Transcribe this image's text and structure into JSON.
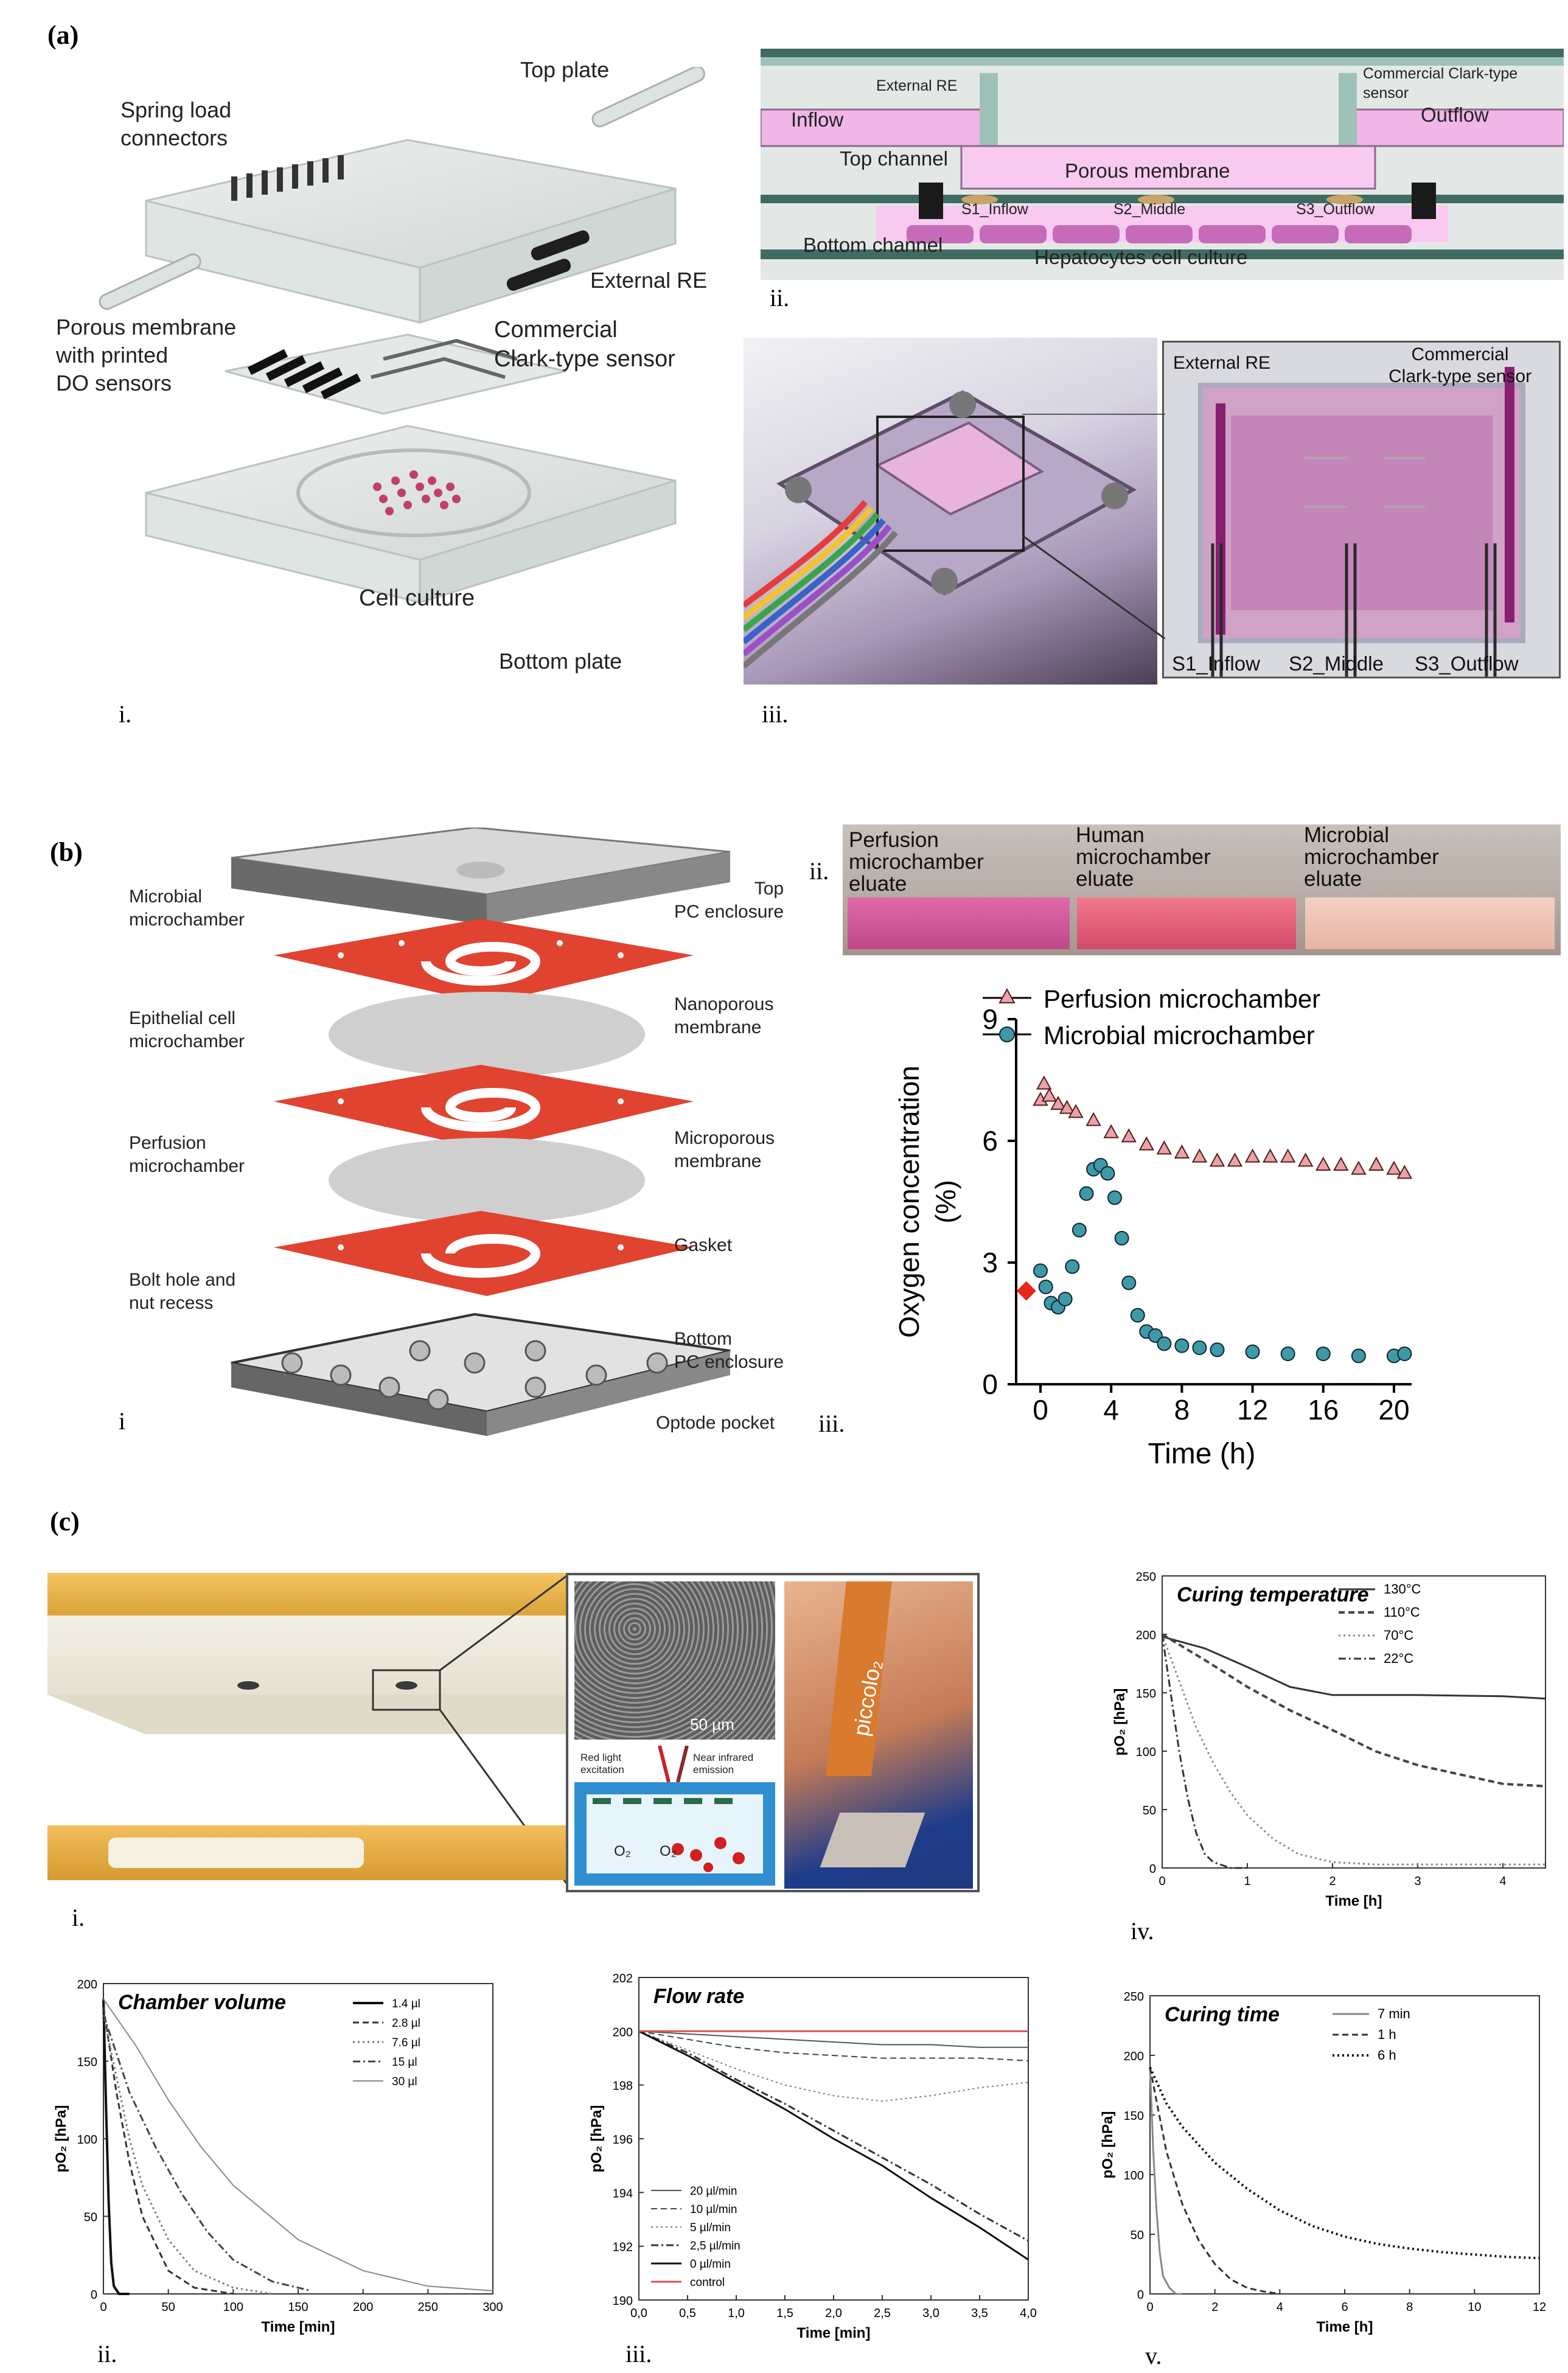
{
  "panel_a": {
    "label": "(a)",
    "sub_i": "i.",
    "sub_ii": "ii.",
    "sub_iii": "iii.",
    "exploded": {
      "spring_load_connectors": "Spring load\nconnectors",
      "top_plate": "Top plate",
      "porous_membrane": "Porous membrane\nwith printed\nDO sensors",
      "external_re": "External RE",
      "clark_sensor": "Commercial\nClark-type sensor",
      "cell_culture": "Cell culture",
      "bottom_plate": "Bottom plate"
    },
    "cross_section": {
      "external_re": "External RE",
      "clark_sensor": "Commercial Clark-type\nsensor",
      "inflow": "Inflow",
      "outflow": "Outflow",
      "top_channel": "Top channel",
      "porous_membrane": "Porous membrane",
      "s1": "S1_Inflow",
      "s2": "S2_Middle",
      "s3": "S3_Outflow",
      "bottom_channel": "Bottom channel",
      "hepatocytes": "Hepatocytes cell culture"
    },
    "photo": {
      "external_re": "External RE",
      "clark_sensor": "Commercial\nClark-type sensor",
      "s1": "S1_Inflow",
      "s2": "S2_Middle",
      "s3": "S3_Outflow"
    }
  },
  "panel_b": {
    "label": "(b)",
    "sub_i": "i",
    "sub_ii": "ii.",
    "sub_iii": "iii.",
    "exploded": {
      "top_pc": "Top\nPC enclosure",
      "microbial": "Microbial\nmicrochamber",
      "nanoporous": "Nanoporous\nmembrane",
      "epithelial": "Epithelial cell\nmicrochamber",
      "perfusion": "Perfusion\nmicrochamber",
      "microporous": "Microporous\nmembrane",
      "gasket": "Gasket",
      "bolt_hole": "Bolt hole and\nnut recess",
      "bottom_pc": "Bottom\nPC enclosure",
      "optode": "Optode pocket"
    },
    "eluates": [
      "Perfusion\nmicrochamber\neluate",
      "Human\nmicrochamber\neluate",
      "Microbial\nmicrochamber\neluate"
    ]
  },
  "panel_c": {
    "label": "(c)",
    "sub_i": "i.",
    "sub_ii": "ii.",
    "sub_iii": "iii.",
    "sub_iv": "iv.",
    "sub_v": "v.",
    "sem_scale": "50 µm",
    "red_light": "Red light\nexcitation",
    "nir": "Near infrared\nemission",
    "o2a": "O₂",
    "o2b": "O₂",
    "probe_brand": "piccolo₂"
  },
  "colors": {
    "perfusion": "#e8a4a8",
    "microbial": "#3e9aa6",
    "red_marker": "#e8271c",
    "red_layer": "#e0432f",
    "pink": "#f0b6e8",
    "gold": "#e2a23a"
  },
  "chart_data": [
    {
      "id": "b-iii",
      "type": "scatter",
      "xlabel": "Time (h)",
      "ylabel": "Oxygen concentration\n(%)",
      "xlim": [
        0,
        21
      ],
      "ylim": [
        0,
        9
      ],
      "xticks": [
        0,
        4,
        8,
        12,
        16,
        20
      ],
      "yticks": [
        0,
        3,
        6,
        9
      ],
      "grid": false,
      "legend_position": "top",
      "series": [
        {
          "name": "Perfusion microchamber",
          "x": [
            0,
            0.2,
            0.5,
            1,
            1.5,
            2,
            3,
            4,
            5,
            6,
            7,
            8,
            9,
            10,
            11,
            12,
            13,
            14,
            15,
            16,
            17,
            18,
            19,
            20,
            20.6
          ],
          "y": [
            7.0,
            7.4,
            7.1,
            6.9,
            6.8,
            6.7,
            6.5,
            6.2,
            6.1,
            5.9,
            5.8,
            5.7,
            5.6,
            5.5,
            5.5,
            5.6,
            5.6,
            5.6,
            5.5,
            5.4,
            5.4,
            5.3,
            5.4,
            5.3,
            5.2
          ]
        },
        {
          "name": "Microbial microchamber",
          "x": [
            0,
            0.3,
            0.6,
            1,
            1.4,
            1.8,
            2.2,
            2.6,
            3,
            3.4,
            3.8,
            4.2,
            4.6,
            5,
            5.5,
            6,
            6.5,
            7,
            8,
            9,
            10,
            12,
            14,
            16,
            18,
            20,
            20.6
          ],
          "y": [
            2.8,
            2.4,
            2.0,
            1.9,
            2.1,
            2.9,
            3.8,
            4.7,
            5.3,
            5.4,
            5.2,
            4.6,
            3.6,
            2.5,
            1.7,
            1.3,
            1.2,
            1.0,
            0.95,
            0.9,
            0.85,
            0.8,
            0.75,
            0.75,
            0.7,
            0.7,
            0.75
          ]
        },
        {
          "name": "",
          "x": [
            -0.8
          ],
          "y": [
            2.3
          ]
        }
      ]
    },
    {
      "id": "c-iv",
      "type": "line",
      "title": "Curing temperature",
      "xlabel": "Time [h]",
      "ylabel": "pO₂ [hPa]",
      "xlim": [
        0,
        4.5
      ],
      "ylim": [
        0,
        250
      ],
      "xticks": [
        0,
        1,
        2,
        3,
        4
      ],
      "yticks": [
        0,
        50,
        100,
        150,
        200,
        250
      ],
      "series": [
        {
          "name": "130°C",
          "x": [
            0,
            0.5,
            1,
            1.5,
            2,
            3,
            4,
            4.5
          ],
          "y": [
            198,
            188,
            172,
            155,
            148,
            148,
            147,
            145
          ]
        },
        {
          "name": "110°C",
          "x": [
            0,
            0.5,
            1,
            1.5,
            2,
            2.5,
            3,
            3.5,
            4,
            4.5
          ],
          "y": [
            200,
            178,
            155,
            135,
            118,
            100,
            88,
            80,
            72,
            70
          ]
        },
        {
          "name": "70°C",
          "x": [
            0,
            0.2,
            0.4,
            0.6,
            0.8,
            1,
            1.3,
            1.6,
            2,
            2.5,
            3,
            3.5,
            4,
            4.5
          ],
          "y": [
            200,
            160,
            120,
            90,
            65,
            45,
            25,
            12,
            5,
            3,
            3,
            3,
            3,
            3
          ]
        },
        {
          "name": "22°C",
          "x": [
            0,
            0.1,
            0.2,
            0.3,
            0.4,
            0.5,
            0.6,
            0.8,
            1
          ],
          "y": [
            200,
            150,
            100,
            60,
            30,
            12,
            5,
            0,
            0
          ]
        }
      ]
    },
    {
      "id": "c-ii",
      "type": "line",
      "title": "Chamber volume",
      "xlabel": "Time [min]",
      "ylabel": "pO₂ [hPa]",
      "xlim": [
        0,
        300
      ],
      "ylim": [
        0,
        200
      ],
      "xticks": [
        0,
        50,
        100,
        150,
        200,
        250,
        300
      ],
      "yticks": [
        0,
        50,
        100,
        150,
        200
      ],
      "series": [
        {
          "name": "1.4 µl",
          "x": [
            0,
            2,
            4,
            6,
            8,
            12,
            20
          ],
          "y": [
            190,
            120,
            60,
            20,
            5,
            0,
            0
          ]
        },
        {
          "name": "2.8 µl",
          "x": [
            0,
            10,
            20,
            30,
            50,
            70,
            100
          ],
          "y": [
            185,
            130,
            85,
            50,
            15,
            4,
            0
          ]
        },
        {
          "name": "7.6 µl",
          "x": [
            0,
            10,
            20,
            30,
            50,
            70,
            100,
            130
          ],
          "y": [
            180,
            140,
            100,
            70,
            35,
            15,
            4,
            0
          ]
        },
        {
          "name": "15 µl",
          "x": [
            0,
            20,
            40,
            60,
            80,
            100,
            130,
            160
          ],
          "y": [
            180,
            130,
            95,
            65,
            40,
            22,
            8,
            2
          ]
        },
        {
          "name": "30 µl",
          "x": [
            0,
            25,
            50,
            75,
            100,
            150,
            200,
            250,
            300
          ],
          "y": [
            190,
            160,
            125,
            95,
            70,
            35,
            15,
            5,
            2
          ]
        }
      ]
    },
    {
      "id": "c-iii",
      "type": "line",
      "title": "Flow rate",
      "xlabel": "Time [min]",
      "ylabel": "pO₂ [hPa]",
      "xlim": [
        0,
        4
      ],
      "ylim": [
        190,
        202
      ],
      "xticks": [
        0,
        0.5,
        1,
        1.5,
        2,
        2.5,
        3,
        3.5,
        4
      ],
      "xtick_labels": [
        "0,0",
        "0,5",
        "1,0",
        "1,5",
        "2,0",
        "2,5",
        "3,0",
        "3,5",
        "4,0"
      ],
      "yticks": [
        190,
        192,
        194,
        196,
        198,
        200,
        202
      ],
      "series": [
        {
          "name": "20 µl/min",
          "x": [
            0,
            0.5,
            1,
            1.5,
            2,
            2.5,
            3,
            3.5,
            4
          ],
          "y": [
            200,
            199.9,
            199.8,
            199.7,
            199.6,
            199.5,
            199.5,
            199.4,
            199.4
          ]
        },
        {
          "name": "10 µl/min",
          "x": [
            0,
            0.5,
            1,
            1.5,
            2,
            2.5,
            3,
            3.5,
            4
          ],
          "y": [
            200,
            199.7,
            199.4,
            199.2,
            199.1,
            199.0,
            199.0,
            199.0,
            198.9
          ]
        },
        {
          "name": "5 µl/min",
          "x": [
            0,
            0.5,
            1,
            1.5,
            2,
            2.5,
            3,
            3.5,
            4
          ],
          "y": [
            200,
            199.3,
            198.6,
            198.0,
            197.6,
            197.4,
            197.6,
            197.9,
            198.1
          ]
        },
        {
          "name": "2,5 µl/min",
          "x": [
            0,
            0.5,
            1,
            1.5,
            2,
            2.5,
            3,
            3.5,
            4
          ],
          "y": [
            200,
            199.2,
            198.2,
            197.3,
            196.3,
            195.3,
            194.3,
            193.2,
            192.2
          ]
        },
        {
          "name": "0 µl/min",
          "x": [
            0,
            0.5,
            1,
            1.5,
            2,
            2.5,
            3,
            3.5,
            4
          ],
          "y": [
            200,
            199.1,
            198.1,
            197.1,
            196.0,
            195.0,
            193.8,
            192.7,
            191.5
          ]
        },
        {
          "name": "control",
          "x": [
            0,
            0.5,
            1,
            1.5,
            2,
            2.5,
            3,
            3.5,
            4
          ],
          "y": [
            200,
            200,
            200,
            200,
            200,
            200,
            200,
            200,
            200
          ]
        }
      ]
    },
    {
      "id": "c-v",
      "type": "line",
      "title": "Curing time",
      "xlabel": "Time [h]",
      "ylabel": "pO₂ [hPa]",
      "xlim": [
        0,
        12
      ],
      "ylim": [
        0,
        250
      ],
      "xticks": [
        0,
        2,
        4,
        6,
        8,
        10,
        12
      ],
      "yticks": [
        0,
        50,
        100,
        150,
        200,
        250
      ],
      "series": [
        {
          "name": "7 min",
          "x": [
            0,
            0.1,
            0.2,
            0.3,
            0.4,
            0.6,
            0.8,
            1
          ],
          "y": [
            190,
            120,
            70,
            35,
            15,
            5,
            0,
            0
          ]
        },
        {
          "name": "1 h",
          "x": [
            0,
            0.5,
            1,
            1.5,
            2,
            2.5,
            3,
            3.5,
            4
          ],
          "y": [
            190,
            120,
            75,
            45,
            25,
            12,
            5,
            2,
            0
          ]
        },
        {
          "name": "6 h",
          "x": [
            0,
            0.5,
            1,
            2,
            3,
            4,
            5,
            6,
            7,
            8,
            9,
            10,
            11,
            12
          ],
          "y": [
            190,
            160,
            140,
            110,
            88,
            70,
            57,
            48,
            42,
            38,
            35,
            33,
            31,
            30
          ]
        }
      ]
    }
  ]
}
